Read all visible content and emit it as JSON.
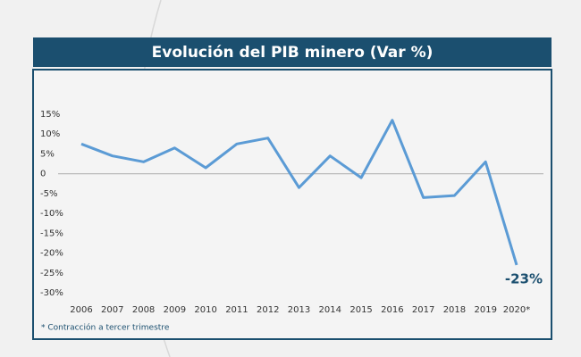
{
  "chart_data": {
    "type": "line",
    "title": "Evolución del PIB minero (Var %)",
    "categories": [
      "2006",
      "2007",
      "2008",
      "2009",
      "2010",
      "2011",
      "2012",
      "2013",
      "2014",
      "2015",
      "2016",
      "2017",
      "2018",
      "2019",
      "2020*"
    ],
    "values": [
      7.5,
      4.5,
      3,
      6.5,
      1.5,
      7.5,
      9,
      -3.5,
      4.5,
      -1,
      13.5,
      -6,
      -5.5,
      3,
      -23
    ],
    "value_labels": [
      null,
      null,
      null,
      null,
      null,
      null,
      null,
      null,
      null,
      null,
      null,
      null,
      null,
      null,
      "-23%"
    ],
    "color": "#5b9bd5",
    "ylim": [
      -30,
      15
    ],
    "yticks": [
      {
        "value": 15,
        "label": "15%"
      },
      {
        "value": 10,
        "label": "10%"
      },
      {
        "value": 5,
        "label": "5%"
      },
      0,
      {
        "value": -5,
        "label": "-5%"
      },
      {
        "value": -10,
        "label": "-10%"
      },
      {
        "value": -15,
        "label": "-15%"
      },
      {
        "value": -20,
        "label": "-20%"
      },
      {
        "value": -25,
        "label": "-25%"
      },
      {
        "value": -30,
        "label": "-30%"
      }
    ],
    "note": "* Contracción a tercer trimestre"
  }
}
